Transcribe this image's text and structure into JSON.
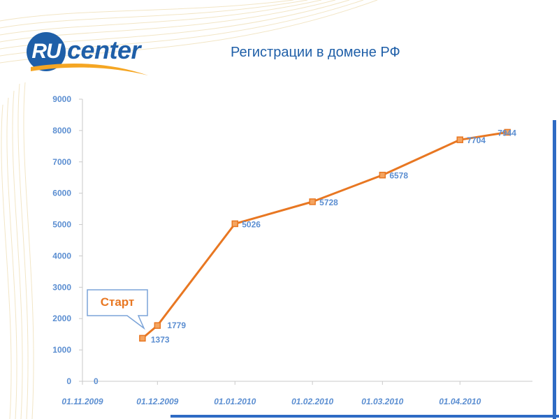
{
  "brand": {
    "logo_ru": "RU",
    "logo_text": "center"
  },
  "slide_title": "Регистрации в домене РФ",
  "callout": {
    "label": "Старт"
  },
  "colors": {
    "line": "#e87722",
    "marker": "#f4a460",
    "axis_text": "#5b8ed1",
    "brand_blue": "#1f5fa8"
  },
  "chart_data": {
    "type": "line",
    "title": "",
    "xlabel": "",
    "ylabel": "",
    "ylim": [
      0,
      9000
    ],
    "y_ticks": [
      "0",
      "1000",
      "2000",
      "3000",
      "4000",
      "5000",
      "6000",
      "7000",
      "8000",
      "9000"
    ],
    "x_tick_labels": [
      "01.11.2009",
      "01.12.2009",
      "01.01.2010",
      "01.02.2010",
      "01.03.2010",
      "01.04.2010"
    ],
    "x_tick_dates": [
      "2009-11-01",
      "2009-12-01",
      "2010-01-01",
      "2010-02-01",
      "2010-03-01",
      "2010-04-01"
    ],
    "grid": false,
    "series": [
      {
        "points": [
          {
            "date": "2009-11-01",
            "value": 0,
            "label": "0",
            "show_marker": false
          },
          {
            "date": "2009-11-25",
            "value": 1373,
            "label": "1373",
            "show_marker": true
          },
          {
            "date": "2009-12-01",
            "value": 1779,
            "label": "1779",
            "show_marker": true
          },
          {
            "date": "2010-01-01",
            "value": 5026,
            "label": "5026",
            "show_marker": true
          },
          {
            "date": "2010-02-01",
            "value": 5728,
            "label": "5728",
            "show_marker": true
          },
          {
            "date": "2010-03-01",
            "value": 6578,
            "label": "6578",
            "show_marker": true
          },
          {
            "date": "2010-04-01",
            "value": 7704,
            "label": "7704",
            "show_marker": true
          },
          {
            "date": "2010-04-20",
            "value": 7944,
            "label": "7944",
            "show_marker": true
          }
        ]
      }
    ]
  }
}
